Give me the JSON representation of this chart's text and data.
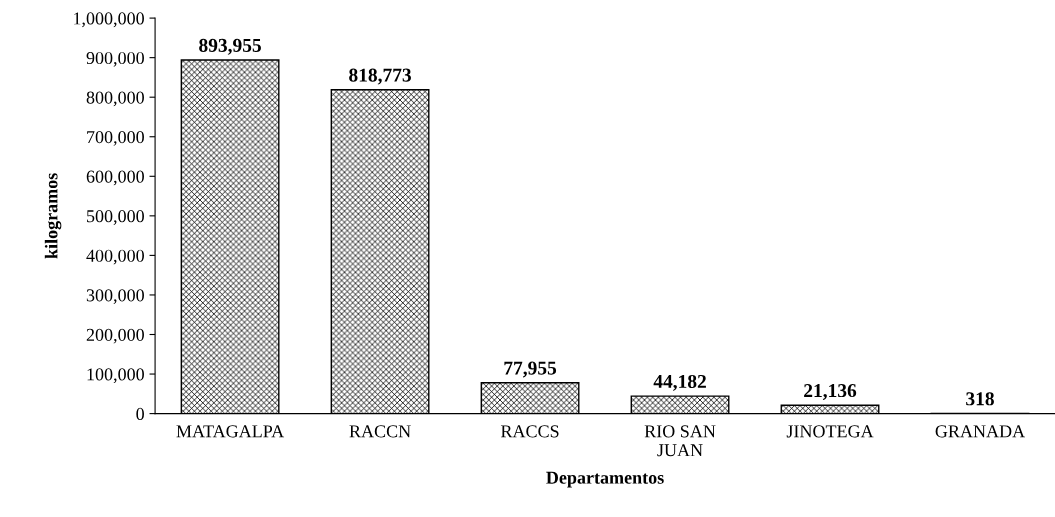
{
  "chart_data": {
    "type": "bar",
    "xlabel": "Departamentos",
    "ylabel": "kilogramos",
    "categories": [
      "MATAGALPA",
      "RACCN",
      "RACCS",
      "RIO SAN JUAN",
      "JINOTEGA",
      "GRANADA"
    ],
    "values": [
      893955,
      818773,
      77955,
      44182,
      21136,
      318
    ],
    "color": "#000000",
    "ylim": [
      0,
      1000000
    ],
    "yticks": [
      0,
      {
        "value": 100000,
        "label": "100,000"
      },
      {
        "value": 200000,
        "label": "200,000"
      },
      {
        "value": 300000,
        "label": "300,000"
      },
      {
        "value": 400000,
        "label": "400,000"
      },
      {
        "value": 500000,
        "label": "500,000"
      },
      {
        "value": 600000,
        "label": "600,000"
      },
      {
        "value": 700000,
        "label": "700,000"
      },
      {
        "value": 800000,
        "label": "800,000"
      },
      {
        "value": 900000,
        "label": "900,000"
      },
      {
        "value": 1000000,
        "label": "1,000,000"
      }
    ],
    "value_labels": [
      "893,955",
      "818,773",
      "77,955",
      "44,182",
      "21,136",
      "318"
    ],
    "grid": false,
    "legend": false
  }
}
